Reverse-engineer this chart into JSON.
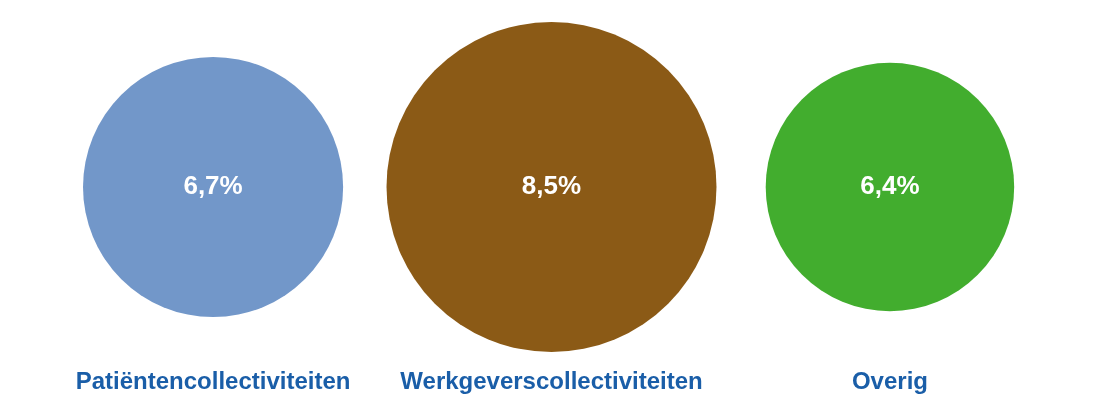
{
  "chart_data": {
    "type": "other",
    "categories": [
      "Patiëntencollectiviteiten",
      "Werkgeverscollectiviteiten",
      "Overig"
    ],
    "values": [
      6.7,
      8.5,
      6.4
    ],
    "value_labels": [
      "6,7%",
      "8,5%",
      "6,4%"
    ],
    "colors": [
      "#7297c9",
      "#8b5a16",
      "#42ad2e"
    ]
  }
}
